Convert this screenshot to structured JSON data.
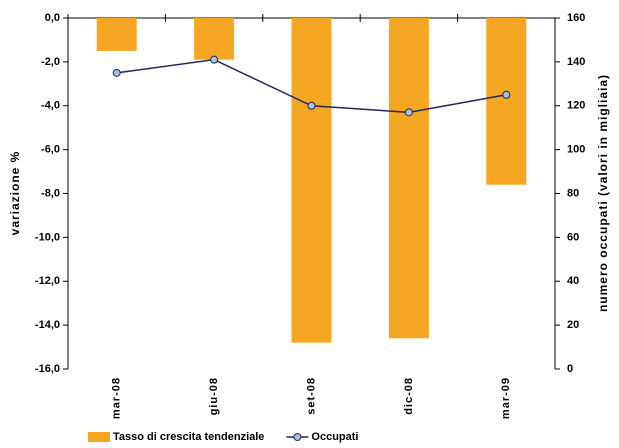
{
  "chart_data": {
    "type": "bar-line",
    "categories": [
      "mar-08",
      "giu-08",
      "set-08",
      "dic-08",
      "mar-09"
    ],
    "series": [
      {
        "name": "Tasso di crescita tendenziale",
        "type": "bar",
        "color": "#f5a623",
        "values": [
          -1.5,
          -1.9,
          -14.8,
          -14.6,
          -7.6
        ]
      },
      {
        "name": "Occupati",
        "type": "line",
        "axis": "y2",
        "color": "#1f2a5c",
        "marker_color": "#a9c1de",
        "values": [
          135,
          141,
          120,
          117,
          125
        ]
      }
    ],
    "ylabel": "variazione %",
    "y2label": "numero occupati  (valori in migliaia)",
    "ylim": [
      -16,
      0
    ],
    "yticks": [
      {
        "value": 0,
        "label": "0,0"
      },
      {
        "value": -2,
        "label": "-2,0"
      },
      {
        "value": -4,
        "label": "-4,0"
      },
      {
        "value": -6,
        "label": "-6,0"
      },
      {
        "value": -8,
        "label": "-8,0"
      },
      {
        "value": -10,
        "label": "-10,0"
      },
      {
        "value": -12,
        "label": "-12,0"
      },
      {
        "value": -14,
        "label": "-14,0"
      },
      {
        "value": -16,
        "label": "-16,0"
      }
    ],
    "y2lim": [
      0,
      160
    ],
    "y2ticks": [
      0,
      20,
      40,
      60,
      80,
      100,
      120,
      140,
      160
    ],
    "legend": "bottom"
  }
}
